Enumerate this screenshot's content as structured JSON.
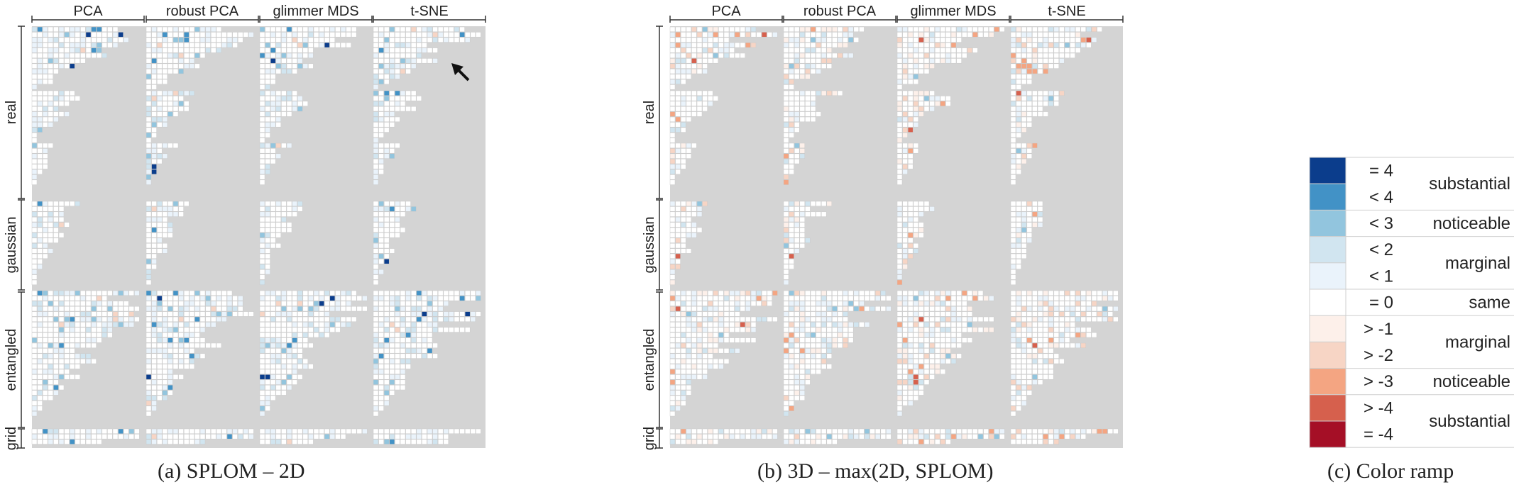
{
  "chart_data": [
    {
      "type": "heatmap",
      "caption": "(a)  SPLOM – 2D",
      "columns": [
        "PCA",
        "robust PCA",
        "glimmer MDS",
        "t-SNE"
      ],
      "row_groups": [
        "real",
        "gaussian",
        "entangled",
        "grid"
      ],
      "annotation": "arrow",
      "seed": 11
    },
    {
      "type": "heatmap",
      "caption": "(b)  3D – max(2D, SPLOM)",
      "columns": [
        "PCA",
        "robust PCA",
        "glimmer MDS",
        "t-SNE"
      ],
      "row_groups": [
        "real",
        "gaussian",
        "entangled",
        "grid"
      ],
      "seed": 29
    }
  ],
  "color_ramp": {
    "caption": "(c)  Color ramp",
    "levels": [
      {
        "label": "= 4",
        "color": "#0b3d8c"
      },
      {
        "label": "< 4",
        "color": "#4292c6"
      },
      {
        "label": "< 3",
        "color": "#92c5de"
      },
      {
        "label": "< 2",
        "color": "#d1e5f0"
      },
      {
        "label": "< 1",
        "color": "#eaf3fb"
      },
      {
        "label": "= 0",
        "color": "#ffffff"
      },
      {
        "label": "> -1",
        "color": "#fdf0ea"
      },
      {
        "label": "> -2",
        "color": "#f7d5c5"
      },
      {
        "label": "> -3",
        "color": "#f4a582"
      },
      {
        "label": "> -4",
        "color": "#d6604d"
      },
      {
        "label": "= -4",
        "color": "#a50f26"
      }
    ],
    "groups": [
      {
        "label": "substantial",
        "from": 0,
        "to": 1
      },
      {
        "label": "noticeable",
        "from": 2,
        "to": 2
      },
      {
        "label": "marginal",
        "from": 3,
        "to": 4
      },
      {
        "label": "same",
        "from": 5,
        "to": 5
      },
      {
        "label": "marginal",
        "from": 6,
        "to": 7
      },
      {
        "label": "noticeable",
        "from": 8,
        "to": 8
      },
      {
        "label": "substantial",
        "from": 9,
        "to": 10
      }
    ]
  }
}
